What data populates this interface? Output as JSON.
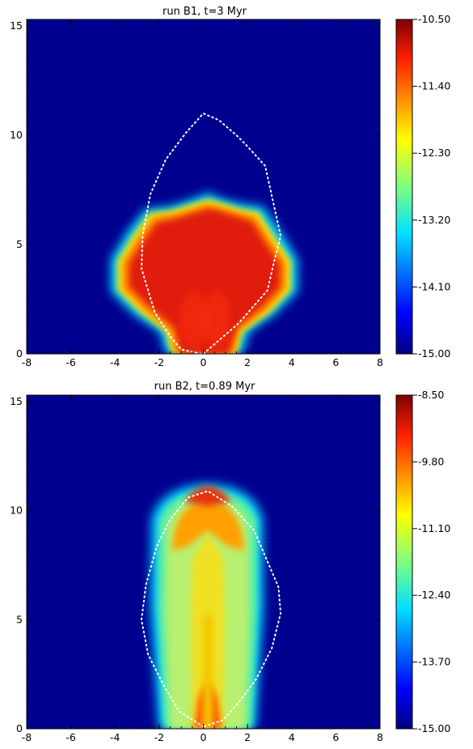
{
  "chart_data": [
    {
      "type": "heatmap",
      "title": "run B1, t=3 Myr",
      "xlim": [
        -8,
        8
      ],
      "ylim": [
        0,
        15.3
      ],
      "x_ticks": [
        "-8",
        "-6",
        "-4",
        "-2",
        "0",
        "2",
        "4",
        "6",
        "8"
      ],
      "y_ticks": [
        "0",
        "5",
        "10",
        "15"
      ],
      "colorbar": {
        "min": -15.0,
        "max": -10.5,
        "ticks": [
          "-10.50",
          "-11.40",
          "-12.30",
          "-13.20",
          "-14.10",
          "-15.00"
        ],
        "colormap": "jet"
      },
      "overlay_contour": {
        "style": "white dotted",
        "x": [
          -0.1,
          -1.0,
          -1.5,
          -2.2,
          -2.8,
          -2.75,
          -2.4,
          -1.7,
          -0.8,
          0.0,
          0.7,
          1.5,
          1.9,
          2.8,
          3.5,
          3.2,
          2.9,
          1.6,
          0.0
        ],
        "y": [
          0.0,
          0.2,
          0.8,
          1.9,
          3.9,
          5.4,
          7.3,
          8.9,
          10.1,
          11.0,
          10.7,
          10.0,
          9.6,
          8.6,
          5.4,
          4.2,
          2.9,
          1.4,
          0.0
        ]
      }
    },
    {
      "type": "heatmap",
      "title": "run B2, t=0.89 Myr",
      "xlim": [
        -8,
        8
      ],
      "ylim": [
        0,
        15.3
      ],
      "x_ticks": [
        "-8",
        "-6",
        "-4",
        "-2",
        "0",
        "2",
        "4",
        "6",
        "8"
      ],
      "y_ticks": [
        "0",
        "5",
        "10",
        "15"
      ],
      "colorbar": {
        "min": -15.0,
        "max": -8.5,
        "ticks": [
          "-8.50",
          "-9.80",
          "-11.10",
          "-12.40",
          "-13.70",
          "-15.00"
        ],
        "colormap": "jet"
      },
      "overlay_contour": {
        "style": "white dotted",
        "x": [
          0.0,
          -1.1,
          -1.8,
          -2.5,
          -2.8,
          -2.6,
          -2.1,
          -1.5,
          -0.7,
          0.2,
          1.3,
          2.3,
          3.4,
          3.5,
          3.1,
          2.4,
          1.6,
          0.9,
          0.0
        ],
        "y": [
          0.1,
          0.8,
          2.0,
          3.4,
          5.0,
          6.6,
          8.4,
          9.6,
          10.6,
          10.9,
          10.2,
          9.1,
          6.5,
          5.3,
          3.7,
          2.3,
          1.2,
          0.4,
          0.1
        ]
      }
    }
  ]
}
